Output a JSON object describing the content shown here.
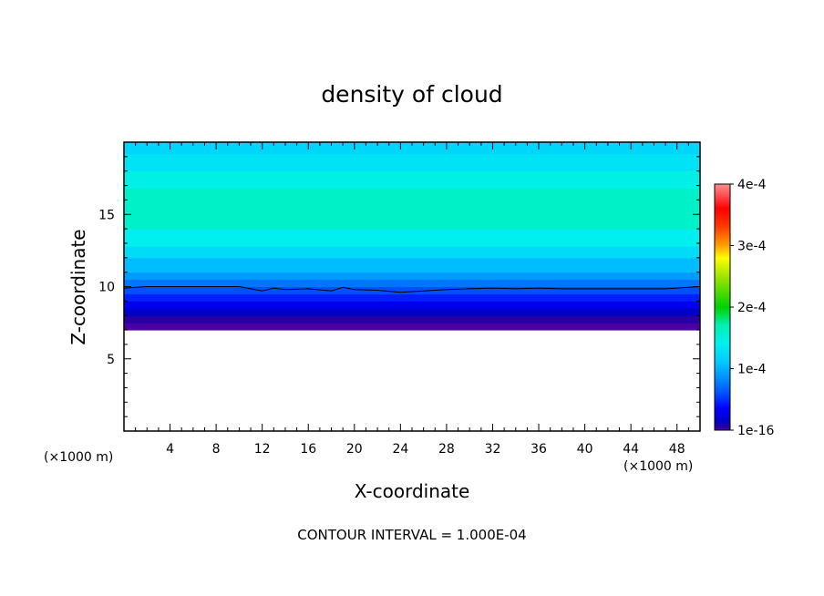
{
  "chart_data": {
    "type": "heatmap",
    "title": "density of cloud",
    "xlabel": "X-coordinate",
    "ylabel": "Z-coordinate",
    "x_unit": "(×1000 m)",
    "y_unit": "(×1000 m)",
    "xlim": [
      0,
      50
    ],
    "ylim": [
      0,
      20
    ],
    "x_ticks": [
      4,
      8,
      12,
      16,
      20,
      24,
      28,
      32,
      36,
      40,
      44,
      48
    ],
    "y_ticks": [
      5,
      10,
      15
    ],
    "contour_note": "CONTOUR INTERVAL = 1.000E-04",
    "colorbar": {
      "min": 1e-16,
      "max": 0.0004,
      "tick_values": [
        1e-16,
        0.0001,
        0.0002,
        0.0003,
        0.0004
      ],
      "tick_labels": [
        "1e-16",
        "1e-4",
        "2e-4",
        "3e-4",
        "4e-4"
      ],
      "stops": [
        {
          "value": 0.0,
          "color": "#6a00a8"
        },
        {
          "value": 4e-06,
          "color": "#2a009c"
        },
        {
          "value": 1.5e-05,
          "color": "#0000c8"
        },
        {
          "value": 3.5e-05,
          "color": "#0000ff"
        },
        {
          "value": 6e-05,
          "color": "#0050ff"
        },
        {
          "value": 8.5e-05,
          "color": "#0090ff"
        },
        {
          "value": 0.00011,
          "color": "#00c8ff"
        },
        {
          "value": 0.00014,
          "color": "#00f0f0"
        },
        {
          "value": 0.00017,
          "color": "#00f0b4"
        },
        {
          "value": 0.0002,
          "color": "#00d200"
        },
        {
          "value": 0.00025,
          "color": "#a0e600"
        },
        {
          "value": 0.00028,
          "color": "#ffff00"
        },
        {
          "value": 0.0003,
          "color": "#ffa000"
        },
        {
          "value": 0.00033,
          "color": "#ff3c00"
        },
        {
          "value": 0.00036,
          "color": "#ff0000"
        },
        {
          "value": 0.0004,
          "color": "#ff9090"
        }
      ]
    },
    "cloud_profile": [
      {
        "z": 7.0,
        "value": 2e-06
      },
      {
        "z": 7.5,
        "value": 5e-06
      },
      {
        "z": 8.0,
        "value": 1.5e-05
      },
      {
        "z": 8.5,
        "value": 3e-05
      },
      {
        "z": 9.0,
        "value": 4.5e-05
      },
      {
        "z": 9.5,
        "value": 6e-05
      },
      {
        "z": 10.0,
        "value": 7.5e-05
      },
      {
        "z": 10.5,
        "value": 9e-05
      },
      {
        "z": 11.0,
        "value": 0.000105
      },
      {
        "z": 12.0,
        "value": 0.000125
      },
      {
        "z": 12.8,
        "value": 0.00014
      },
      {
        "z": 14.0,
        "value": 0.00016
      },
      {
        "z": 16.0,
        "value": 0.00016
      },
      {
        "z": 16.8,
        "value": 0.000145
      },
      {
        "z": 18.0,
        "value": 0.00013
      },
      {
        "z": 19.2,
        "value": 0.00012
      },
      {
        "z": 20.0,
        "value": 0.000115
      }
    ],
    "cloud_base_z": 7.0,
    "contour_line": {
      "value": 0.0001,
      "x": [
        0,
        2,
        4,
        6,
        8,
        10,
        11,
        12,
        13,
        14,
        16,
        18,
        19,
        20,
        22,
        24,
        26,
        28,
        30,
        32,
        34,
        36,
        38,
        40,
        42,
        44,
        46,
        47,
        48,
        49,
        50
      ],
      "z": [
        9.9,
        10.0,
        10.0,
        10.0,
        10.0,
        10.0,
        9.85,
        9.7,
        9.9,
        9.8,
        9.85,
        9.7,
        9.95,
        9.8,
        9.75,
        9.6,
        9.7,
        9.8,
        9.85,
        9.9,
        9.85,
        9.9,
        9.85,
        9.85,
        9.85,
        9.85,
        9.85,
        9.85,
        9.9,
        9.95,
        10.0
      ]
    }
  }
}
